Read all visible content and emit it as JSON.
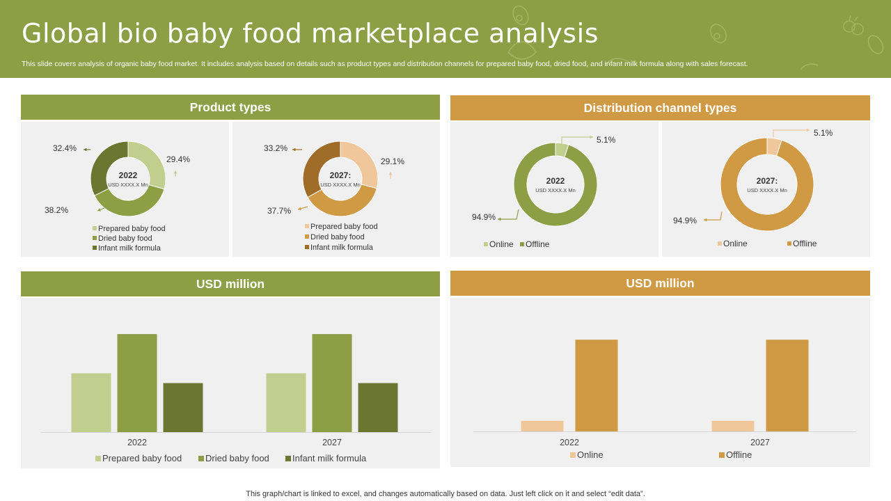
{
  "header": {
    "title": "Global bio baby food marketplace analysis",
    "subtitle": "This slide covers analysis of organic baby food market. It includes analysis based on details such as product types and distribution channels for prepared baby food, dried food, and infant milk formula along with sales forecast."
  },
  "sections": {
    "product_types": "Product types",
    "distribution": "Distribution channel types",
    "usd_left": "USD million",
    "usd_right": "USD million"
  },
  "colors": {
    "green_header": "#8d9e45",
    "orange_header": "#d09a44",
    "light_green": "#c2ce8d",
    "mid_green": "#8d9e45",
    "dark_green": "#6b7631",
    "light_orange": "#efc79a",
    "mid_orange": "#d09a44",
    "dark_orange": "#a06d28"
  },
  "footer": "This graph/chart is linked to excel, and changes automatically based on data. Just left click on it and select “edit data”.",
  "chart_data": [
    {
      "type": "pie",
      "id": "product-2022",
      "center_label": "2022",
      "center_sub": "USD XXXX.X  Mn",
      "categories": [
        "Prepared baby food",
        "Dried baby food",
        "Infant milk formula"
      ],
      "values": [
        29.4,
        38.2,
        32.4
      ],
      "labels": [
        "29.4%",
        "38.2%",
        "32.4%"
      ]
    },
    {
      "type": "pie",
      "id": "product-2027",
      "center_label": "2027:",
      "center_sub": "USD XXXX.X  Mn",
      "categories": [
        "Prepared baby food",
        "Dried baby food",
        "Infant milk formula"
      ],
      "values": [
        29.1,
        37.7,
        33.2
      ],
      "labels": [
        "29.1%",
        "37.7%",
        "33.2%"
      ]
    },
    {
      "type": "pie",
      "id": "channel-2022",
      "center_label": "2022",
      "center_sub": "USD XXXX.X  Mn",
      "categories": [
        "Online",
        "Offline"
      ],
      "values": [
        5.1,
        94.9
      ],
      "labels": [
        "5.1%",
        "94.9%"
      ]
    },
    {
      "type": "pie",
      "id": "channel-2027",
      "center_label": "2027:",
      "center_sub": "USD XXXX.X  Mn",
      "categories": [
        "Online",
        "Offline"
      ],
      "values": [
        5.1,
        94.9
      ],
      "labels": [
        "5.1%",
        "94.9%"
      ]
    },
    {
      "type": "bar",
      "id": "usd-product",
      "categories": [
        "2022",
        "2027"
      ],
      "series": [
        {
          "name": "Prepared baby food",
          "values": [
            3,
            3
          ]
        },
        {
          "name": "Dried baby food",
          "values": [
            5,
            5
          ]
        },
        {
          "name": "Infant milk formula",
          "values": [
            2.5,
            2.5
          ]
        }
      ],
      "ylim": [
        0,
        5.5
      ],
      "grid": false
    },
    {
      "type": "bar",
      "id": "usd-channel",
      "categories": [
        "2022",
        "2027"
      ],
      "series": [
        {
          "name": "Online",
          "values": [
            0.6,
            0.6
          ]
        },
        {
          "name": "Offline",
          "values": [
            5.2,
            5.2
          ]
        }
      ],
      "ylim": [
        0,
        5.6
      ],
      "grid": false
    }
  ]
}
